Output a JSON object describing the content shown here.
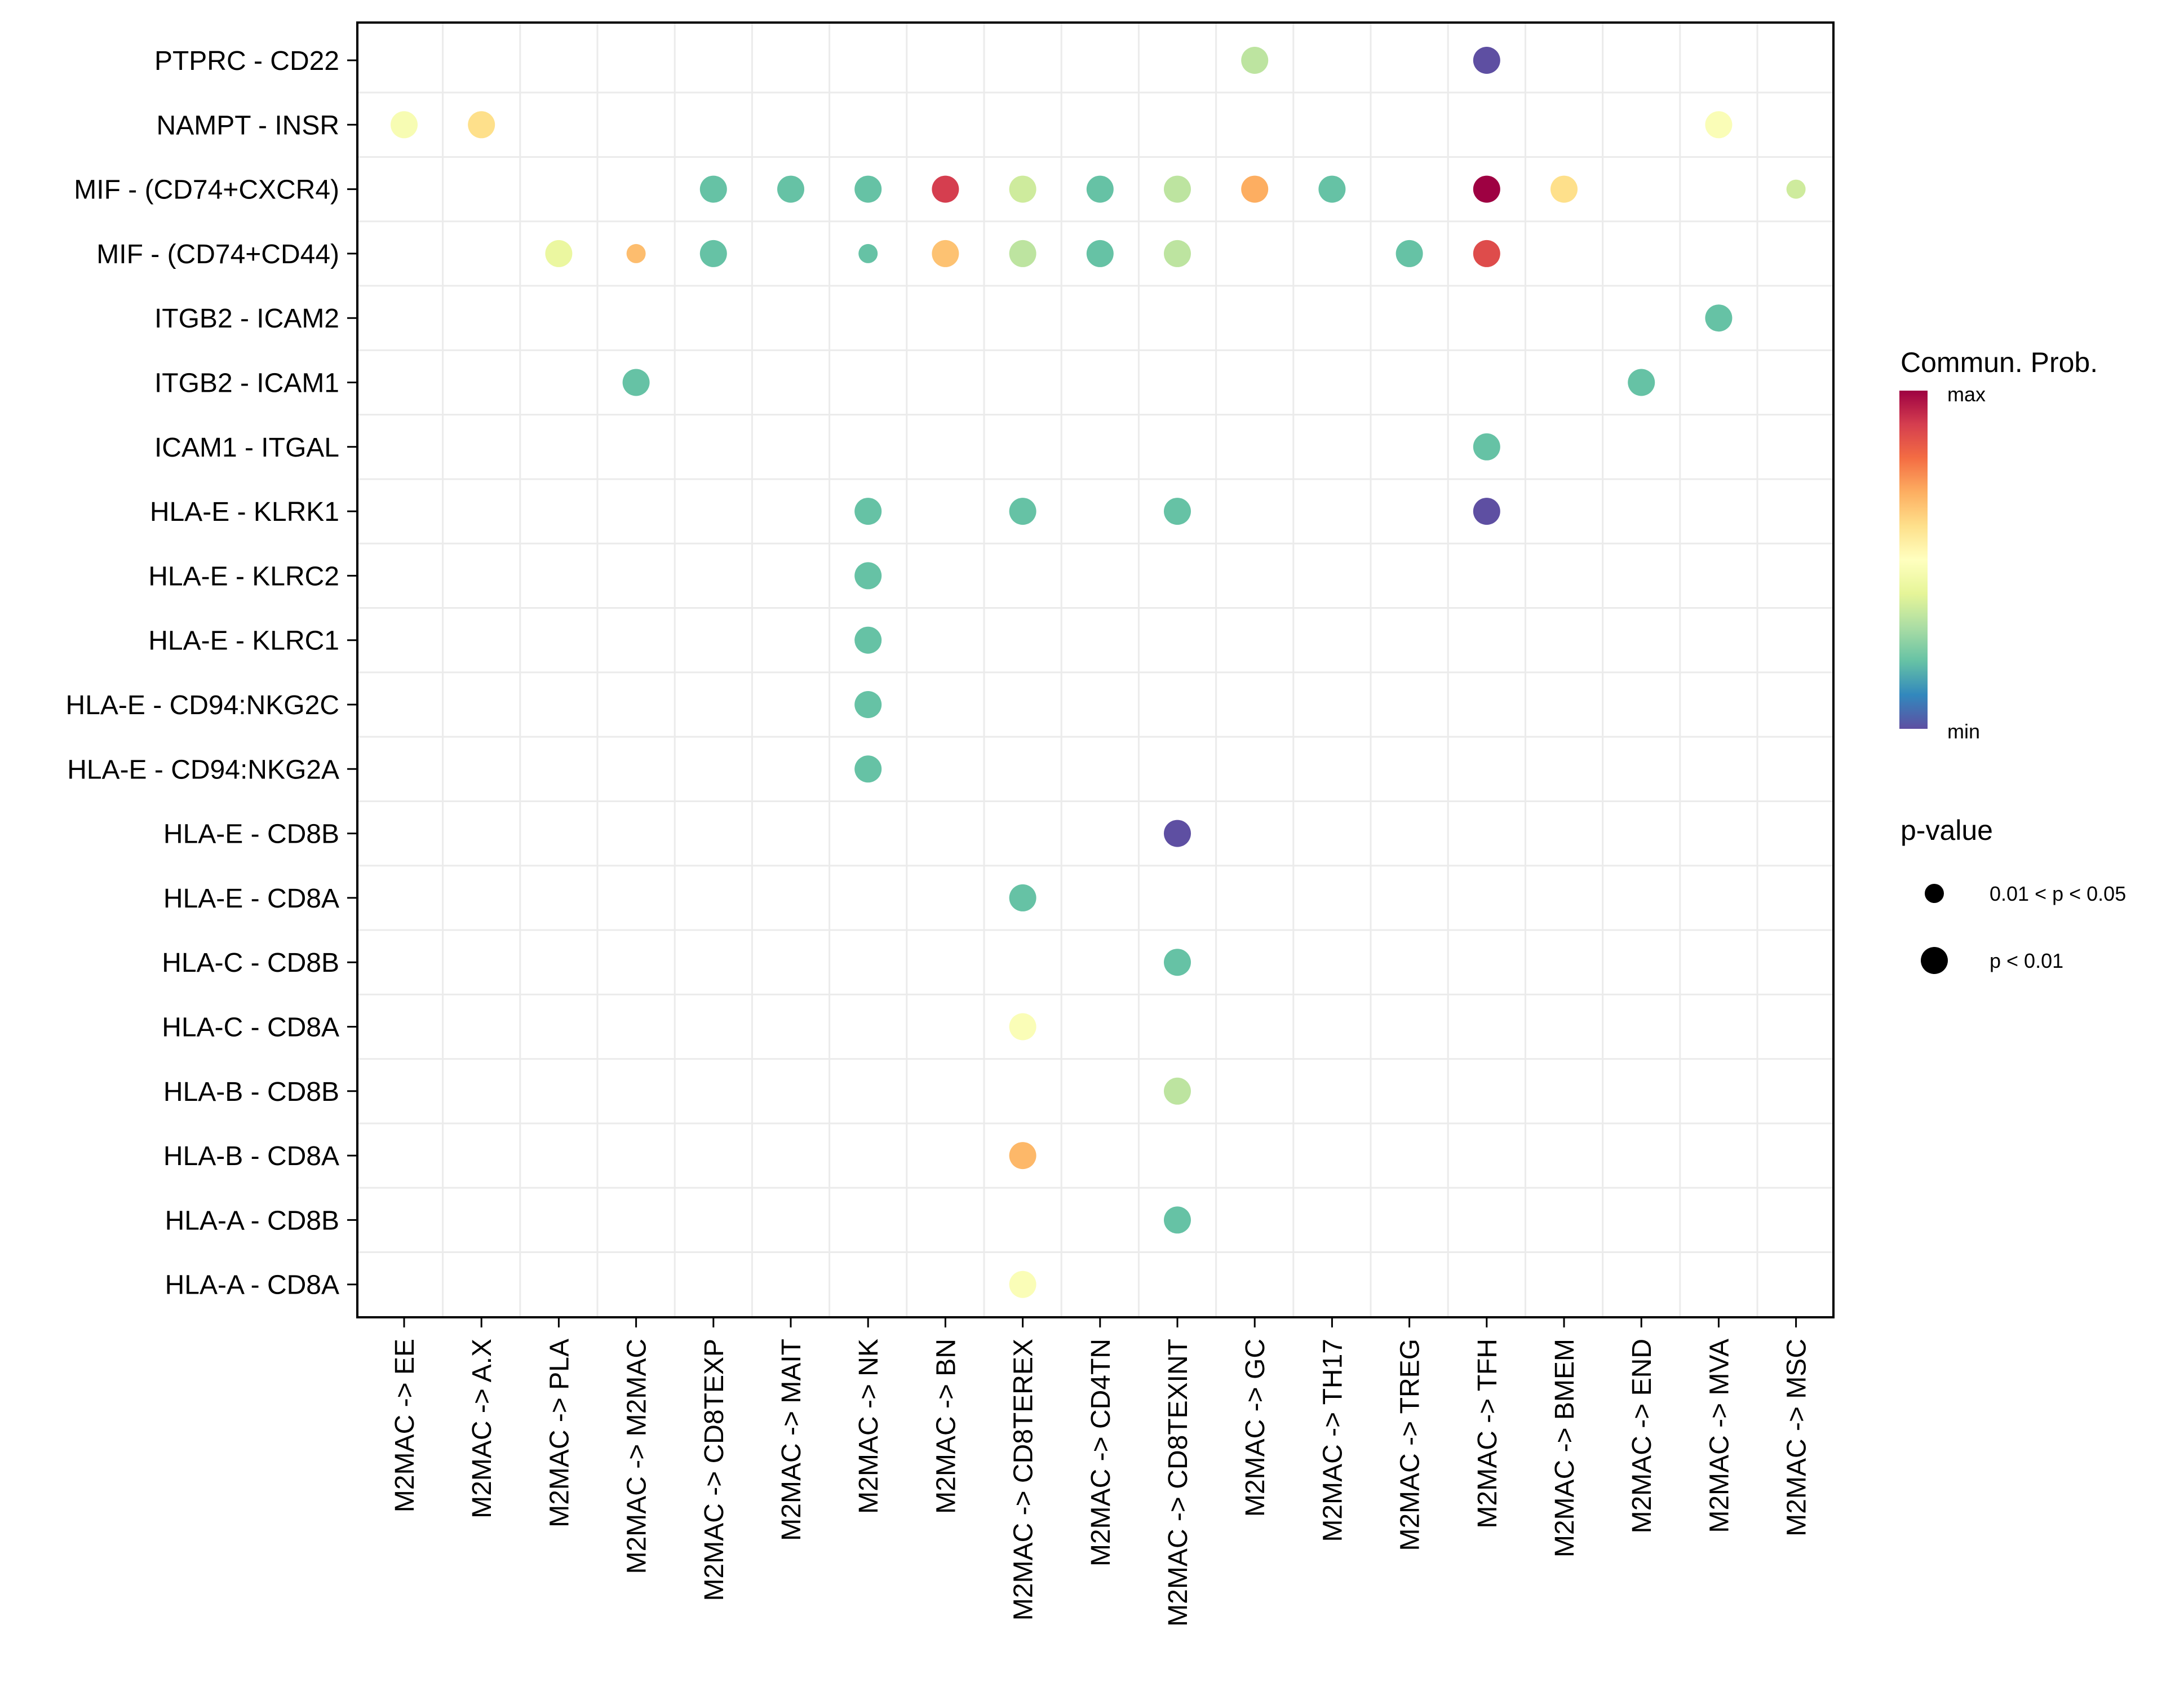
{
  "chart_data": {
    "type": "scatter",
    "subtype": "dot-matrix",
    "title": "",
    "xlabel": "",
    "ylabel": "",
    "grid": true,
    "x_categories": [
      "M2MAC -> EE",
      "M2MAC -> A.X",
      "M2MAC -> PLA",
      "M2MAC -> M2MAC",
      "M2MAC -> CD8TEXP",
      "M2MAC -> MAIT",
      "M2MAC -> NK",
      "M2MAC -> BN",
      "M2MAC -> CD8TEREX",
      "M2MAC -> CD4TN",
      "M2MAC -> CD8TEXINT",
      "M2MAC -> GC",
      "M2MAC -> TH17",
      "M2MAC -> TREG",
      "M2MAC -> TFH",
      "M2MAC -> BMEM",
      "M2MAC -> END",
      "M2MAC -> MVA",
      "M2MAC -> MSC"
    ],
    "y_categories": [
      "PTPRC - CD22",
      "NAMPT - INSR",
      "MIF - (CD74+CXCR4)",
      "MIF - (CD74+CD44)",
      "ITGB2 - ICAM2",
      "ITGB2 - ICAM1",
      "ICAM1 - ITGAL",
      "HLA-E - KLRK1",
      "HLA-E - KLRC2",
      "HLA-E - KLRC1",
      "HLA-E - CD94:NKG2C",
      "HLA-E - CD94:NKG2A",
      "HLA-E - CD8B",
      "HLA-E - CD8A",
      "HLA-C - CD8B",
      "HLA-C - CD8A",
      "HLA-B - CD8B",
      "HLA-B - CD8A",
      "HLA-A - CD8B",
      "HLA-A - CD8A"
    ],
    "color_scale": {
      "name": "Commun. Prob.",
      "palette": [
        "#5E4FA2",
        "#3288BD",
        "#66C2A5",
        "#ABDDA4",
        "#E6F598",
        "#FFFFBF",
        "#FEE08B",
        "#FDAE61",
        "#F46D43",
        "#D53E4F",
        "#9E0142"
      ],
      "min_label": "min",
      "max_label": "max",
      "range": [
        0,
        1
      ]
    },
    "size_legend": {
      "title": "p-value",
      "levels": [
        {
          "label": "0.01 < p < 0.05",
          "key": "p05"
        },
        {
          "label": "p < 0.01",
          "key": "p01"
        }
      ]
    },
    "legend_position": "right",
    "points": [
      {
        "x": "M2MAC -> GC",
        "y": "PTPRC - CD22",
        "prob": 0.33,
        "pval": "p01"
      },
      {
        "x": "M2MAC -> TFH",
        "y": "PTPRC - CD22",
        "prob": 0.0,
        "pval": "p01"
      },
      {
        "x": "M2MAC -> EE",
        "y": "NAMPT - INSR",
        "prob": 0.47,
        "pval": "p01"
      },
      {
        "x": "M2MAC -> A.X",
        "y": "NAMPT - INSR",
        "prob": 0.6,
        "pval": "p01"
      },
      {
        "x": "M2MAC -> MVA",
        "y": "NAMPT - INSR",
        "prob": 0.48,
        "pval": "p01"
      },
      {
        "x": "M2MAC -> CD8TEXP",
        "y": "MIF - (CD74+CXCR4)",
        "prob": 0.2,
        "pval": "p01"
      },
      {
        "x": "M2MAC -> MAIT",
        "y": "MIF - (CD74+CXCR4)",
        "prob": 0.2,
        "pval": "p01"
      },
      {
        "x": "M2MAC -> NK",
        "y": "MIF - (CD74+CXCR4)",
        "prob": 0.2,
        "pval": "p01"
      },
      {
        "x": "M2MAC -> BN",
        "y": "MIF - (CD74+CXCR4)",
        "prob": 0.9,
        "pval": "p01"
      },
      {
        "x": "M2MAC -> CD8TEREX",
        "y": "MIF - (CD74+CXCR4)",
        "prob": 0.36,
        "pval": "p01"
      },
      {
        "x": "M2MAC -> CD4TN",
        "y": "MIF - (CD74+CXCR4)",
        "prob": 0.2,
        "pval": "p01"
      },
      {
        "x": "M2MAC -> CD8TEXINT",
        "y": "MIF - (CD74+CXCR4)",
        "prob": 0.33,
        "pval": "p01"
      },
      {
        "x": "M2MAC -> GC",
        "y": "MIF - (CD74+CXCR4)",
        "prob": 0.7,
        "pval": "p01"
      },
      {
        "x": "M2MAC -> TH17",
        "y": "MIF - (CD74+CXCR4)",
        "prob": 0.2,
        "pval": "p01"
      },
      {
        "x": "M2MAC -> TFH",
        "y": "MIF - (CD74+CXCR4)",
        "prob": 1.0,
        "pval": "p01"
      },
      {
        "x": "M2MAC -> BMEM",
        "y": "MIF - (CD74+CXCR4)",
        "prob": 0.6,
        "pval": "p01"
      },
      {
        "x": "M2MAC -> MSC",
        "y": "MIF - (CD74+CXCR4)",
        "prob": 0.36,
        "pval": "p05"
      },
      {
        "x": "M2MAC -> PLA",
        "y": "MIF - (CD74+CD44)",
        "prob": 0.42,
        "pval": "p01"
      },
      {
        "x": "M2MAC -> M2MAC",
        "y": "MIF - (CD74+CD44)",
        "prob": 0.67,
        "pval": "p05"
      },
      {
        "x": "M2MAC -> CD8TEXP",
        "y": "MIF - (CD74+CD44)",
        "prob": 0.2,
        "pval": "p01"
      },
      {
        "x": "M2MAC -> NK",
        "y": "MIF - (CD74+CD44)",
        "prob": 0.2,
        "pval": "p05"
      },
      {
        "x": "M2MAC -> BN",
        "y": "MIF - (CD74+CD44)",
        "prob": 0.66,
        "pval": "p01"
      },
      {
        "x": "M2MAC -> CD8TEREX",
        "y": "MIF - (CD74+CD44)",
        "prob": 0.33,
        "pval": "p01"
      },
      {
        "x": "M2MAC -> CD4TN",
        "y": "MIF - (CD74+CD44)",
        "prob": 0.2,
        "pval": "p01"
      },
      {
        "x": "M2MAC -> CD8TEXINT",
        "y": "MIF - (CD74+CD44)",
        "prob": 0.33,
        "pval": "p01"
      },
      {
        "x": "M2MAC -> TREG",
        "y": "MIF - (CD74+CD44)",
        "prob": 0.2,
        "pval": "p01"
      },
      {
        "x": "M2MAC -> TFH",
        "y": "MIF - (CD74+CD44)",
        "prob": 0.87,
        "pval": "p01"
      },
      {
        "x": "M2MAC -> MVA",
        "y": "ITGB2 - ICAM2",
        "prob": 0.2,
        "pval": "p01"
      },
      {
        "x": "M2MAC -> M2MAC",
        "y": "ITGB2 - ICAM1",
        "prob": 0.2,
        "pval": "p01"
      },
      {
        "x": "M2MAC -> END",
        "y": "ITGB2 - ICAM1",
        "prob": 0.2,
        "pval": "p01"
      },
      {
        "x": "M2MAC -> TFH",
        "y": "ICAM1 - ITGAL",
        "prob": 0.2,
        "pval": "p01"
      },
      {
        "x": "M2MAC -> NK",
        "y": "HLA-E - KLRK1",
        "prob": 0.2,
        "pval": "p01"
      },
      {
        "x": "M2MAC -> CD8TEREX",
        "y": "HLA-E - KLRK1",
        "prob": 0.2,
        "pval": "p01"
      },
      {
        "x": "M2MAC -> CD8TEXINT",
        "y": "HLA-E - KLRK1",
        "prob": 0.2,
        "pval": "p01"
      },
      {
        "x": "M2MAC -> TFH",
        "y": "HLA-E - KLRK1",
        "prob": 0.0,
        "pval": "p01"
      },
      {
        "x": "M2MAC -> NK",
        "y": "HLA-E - KLRC2",
        "prob": 0.2,
        "pval": "p01"
      },
      {
        "x": "M2MAC -> NK",
        "y": "HLA-E - KLRC1",
        "prob": 0.2,
        "pval": "p01"
      },
      {
        "x": "M2MAC -> NK",
        "y": "HLA-E - CD94:NKG2C",
        "prob": 0.2,
        "pval": "p01"
      },
      {
        "x": "M2MAC -> NK",
        "y": "HLA-E - CD94:NKG2A",
        "prob": 0.2,
        "pval": "p01"
      },
      {
        "x": "M2MAC -> CD8TEXINT",
        "y": "HLA-E - CD8B",
        "prob": 0.0,
        "pval": "p01"
      },
      {
        "x": "M2MAC -> CD8TEREX",
        "y": "HLA-E - CD8A",
        "prob": 0.2,
        "pval": "p01"
      },
      {
        "x": "M2MAC -> CD8TEXINT",
        "y": "HLA-C - CD8B",
        "prob": 0.2,
        "pval": "p01"
      },
      {
        "x": "M2MAC -> CD8TEREX",
        "y": "HLA-C - CD8A",
        "prob": 0.48,
        "pval": "p01"
      },
      {
        "x": "M2MAC -> CD8TEXINT",
        "y": "HLA-B - CD8B",
        "prob": 0.33,
        "pval": "p01"
      },
      {
        "x": "M2MAC -> CD8TEREX",
        "y": "HLA-B - CD8A",
        "prob": 0.68,
        "pval": "p01"
      },
      {
        "x": "M2MAC -> CD8TEXINT",
        "y": "HLA-A - CD8B",
        "prob": 0.2,
        "pval": "p01"
      },
      {
        "x": "M2MAC -> CD8TEREX",
        "y": "HLA-A - CD8A",
        "prob": 0.48,
        "pval": "p01"
      }
    ]
  }
}
